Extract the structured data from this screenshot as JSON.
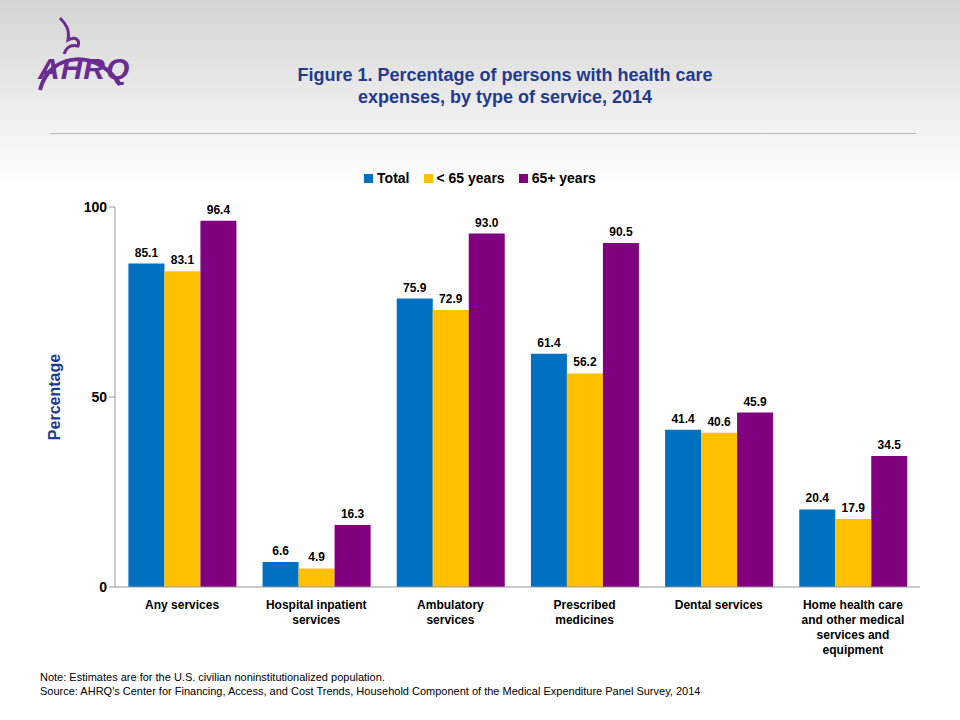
{
  "logo": "AHRQ",
  "chart_data": {
    "type": "bar",
    "title": "Figure 1. Percentage of persons with health care expenses, by type of service, 2014",
    "y_label": "Percentage",
    "categories": [
      "Any services",
      "Hospital inpatient services",
      "Ambulatory services",
      "Prescribed medicines",
      "Dental services",
      "Home health care and other medical services and equipment"
    ],
    "series": [
      {
        "name": "Total",
        "color": "#0070C0",
        "values": [
          85.1,
          6.6,
          75.9,
          61.4,
          41.4,
          20.4
        ],
        "value_labels": [
          "85.1",
          "6.6",
          "75.9",
          "61.4",
          "41.4",
          "20.4"
        ]
      },
      {
        "name": "< 65 years",
        "color": "#FFC000",
        "values": [
          83.1,
          4.9,
          72.9,
          56.2,
          40.6,
          17.9
        ],
        "value_labels": [
          "83.1",
          "4.9",
          "72.9",
          "56.2",
          "40.6",
          "17.9"
        ]
      },
      {
        "name": "65+ years",
        "color": "#800080",
        "values": [
          96.4,
          16.3,
          93.0,
          90.5,
          45.9,
          34.5
        ],
        "value_labels": [
          "96.4",
          "16.3",
          "93.0",
          "90.5",
          "45.9",
          "34.5"
        ]
      }
    ],
    "ylim": [
      0,
      100
    ],
    "yticks": [
      0,
      50,
      100
    ],
    "grid": false,
    "legend": "top",
    "data_labels": true,
    "notes": [
      "Note: Estimates are for the U.S. civilian noninstitutionalized population.",
      "Source: AHRQ's Center for Financing, Access, and Cost Trends, Household Component of the Medical Expenditure Panel Survey, 2014"
    ]
  }
}
